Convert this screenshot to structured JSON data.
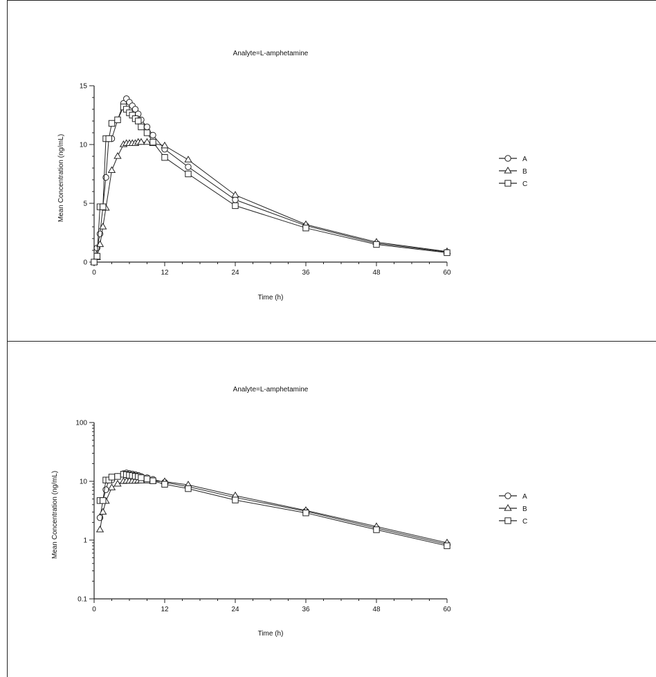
{
  "chart_data": [
    {
      "type": "line",
      "title": "Analyte=L-amphetamine",
      "xlabel": "Time (h)",
      "ylabel": "Mean Concentration (ng/mL)",
      "yscale": "linear",
      "xlim": [
        0,
        60
      ],
      "ylim": [
        0,
        15
      ],
      "xticks": [
        "0",
        "12",
        "24",
        "36",
        "48",
        "60"
      ],
      "yticks": [
        "0",
        "5",
        "10",
        "15"
      ],
      "legend_position": "right",
      "grid": false,
      "series": [
        {
          "name": "A",
          "marker": "circle",
          "x": [
            0,
            0.5,
            1,
            1.5,
            2,
            2.5,
            3,
            4,
            5,
            5.5,
            6,
            6.5,
            7,
            7.5,
            8,
            9,
            10,
            12,
            16,
            24,
            36,
            48,
            60
          ],
          "y": [
            0,
            1.2,
            2.4,
            4.7,
            7.2,
            10.5,
            10.5,
            12.1,
            13.5,
            13.9,
            13.6,
            13.3,
            13.0,
            12.6,
            12.1,
            11.5,
            10.8,
            9.6,
            8.1,
            5.3,
            3.1,
            1.6,
            0.85
          ]
        },
        {
          "name": "B",
          "marker": "triangle",
          "x": [
            0,
            0.5,
            1,
            1.5,
            2,
            3,
            4,
            5,
            5.5,
            6,
            6.5,
            7,
            7.5,
            8,
            9,
            10,
            12,
            16,
            24,
            36,
            48,
            60
          ],
          "y": [
            0,
            0.4,
            1.5,
            3.0,
            4.6,
            7.8,
            9.0,
            10.0,
            10.1,
            10.1,
            10.1,
            10.1,
            10.2,
            10.2,
            10.2,
            10.1,
            9.9,
            8.7,
            5.7,
            3.2,
            1.7,
            0.9
          ]
        },
        {
          "name": "C",
          "marker": "square",
          "x": [
            0,
            0.5,
            1,
            1.5,
            2,
            2.5,
            3,
            4,
            5,
            5.5,
            6,
            6.5,
            7,
            7.5,
            8,
            9,
            10,
            12,
            16,
            24,
            36,
            48,
            60
          ],
          "y": [
            0,
            0.5,
            4.7,
            4.7,
            10.5,
            10.5,
            11.8,
            12.1,
            13.2,
            13.0,
            12.7,
            12.5,
            12.2,
            12.0,
            11.5,
            11.0,
            10.2,
            8.9,
            7.5,
            4.8,
            2.9,
            1.5,
            0.8
          ]
        }
      ]
    },
    {
      "type": "line",
      "title": "Analyte=L-amphetamine",
      "xlabel": "Time (h)",
      "ylabel": "Mean Concentration (ng/mL)",
      "yscale": "log",
      "xlim": [
        0,
        60
      ],
      "ylim": [
        0.1,
        100
      ],
      "xticks": [
        "0",
        "12",
        "24",
        "36",
        "48",
        "60"
      ],
      "yticks": [
        "0.1",
        "1",
        "10",
        "100"
      ],
      "legend_position": "right",
      "grid": false,
      "series": [
        {
          "name": "A",
          "marker": "circle",
          "x": [
            1,
            1.5,
            2,
            2.5,
            3,
            4,
            5,
            5.5,
            6,
            6.5,
            7,
            7.5,
            8,
            9,
            10,
            12,
            16,
            24,
            36,
            48,
            60
          ],
          "y": [
            2.4,
            4.7,
            7.2,
            10.5,
            10.5,
            12.1,
            13.5,
            13.9,
            13.6,
            13.3,
            13.0,
            12.6,
            12.1,
            11.5,
            10.8,
            9.6,
            8.1,
            5.3,
            3.1,
            1.6,
            0.85
          ]
        },
        {
          "name": "B",
          "marker": "triangle",
          "x": [
            1,
            1.5,
            2,
            3,
            4,
            5,
            5.5,
            6,
            6.5,
            7,
            7.5,
            8,
            9,
            10,
            12,
            16,
            24,
            36,
            48,
            60
          ],
          "y": [
            1.5,
            3.0,
            4.6,
            7.8,
            9.0,
            10.0,
            10.1,
            10.1,
            10.1,
            10.1,
            10.2,
            10.2,
            10.2,
            10.1,
            9.9,
            8.7,
            5.7,
            3.2,
            1.7,
            0.9
          ]
        },
        {
          "name": "C",
          "marker": "square",
          "x": [
            1,
            1.5,
            2,
            2.5,
            3,
            4,
            5,
            5.5,
            6,
            6.5,
            7,
            7.5,
            8,
            9,
            10,
            12,
            16,
            24,
            36,
            48,
            60
          ],
          "y": [
            4.7,
            4.7,
            10.5,
            10.5,
            11.8,
            12.1,
            13.2,
            13.0,
            12.7,
            12.5,
            12.2,
            12.0,
            11.5,
            11.0,
            10.2,
            8.9,
            7.5,
            4.8,
            2.9,
            1.5,
            0.8
          ]
        }
      ]
    }
  ]
}
